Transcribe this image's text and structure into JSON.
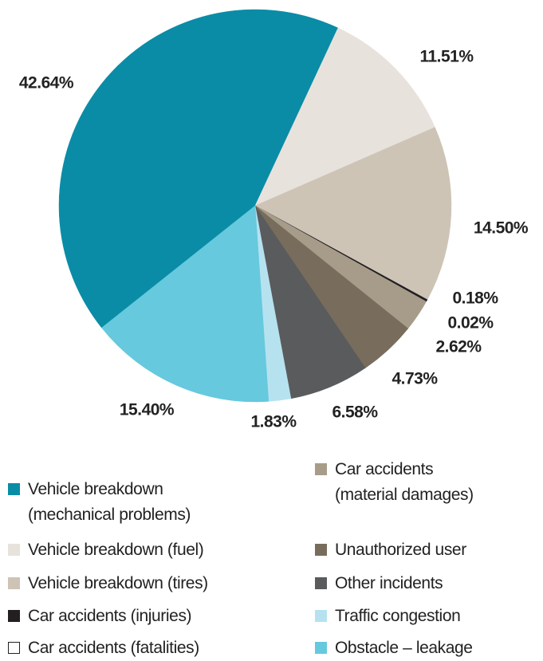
{
  "chart_data": {
    "type": "pie",
    "categories": [
      "Vehicle breakdown\n(mechanical problems)",
      "Vehicle breakdown (fuel)",
      "Vehicle breakdown (tires)",
      "Car accidents (injuries)",
      "Car accidents (fatalities)",
      "Car accidents\n(material damages)",
      "Unauthorized user",
      "Other incidents",
      "Traffic congestion",
      "Obstacle – leakage"
    ],
    "values": [
      42.64,
      11.51,
      14.5,
      0.18,
      0.02,
      2.62,
      4.73,
      6.58,
      1.83,
      15.4
    ],
    "value_labels": [
      "42.64%",
      "11.51%",
      "14.50%",
      "0.18%",
      "0.02%",
      "2.62%",
      "4.73%",
      "6.58%",
      "1.83%",
      "15.40%"
    ],
    "colors": [
      "#0a8ca6",
      "#e8e2dd",
      "#cdc4b6",
      "#231f20",
      "#ffffff",
      "#a79c89",
      "#786d5c",
      "#5a5b5d",
      "#b6e2f0",
      "#66c9dd"
    ]
  }
}
